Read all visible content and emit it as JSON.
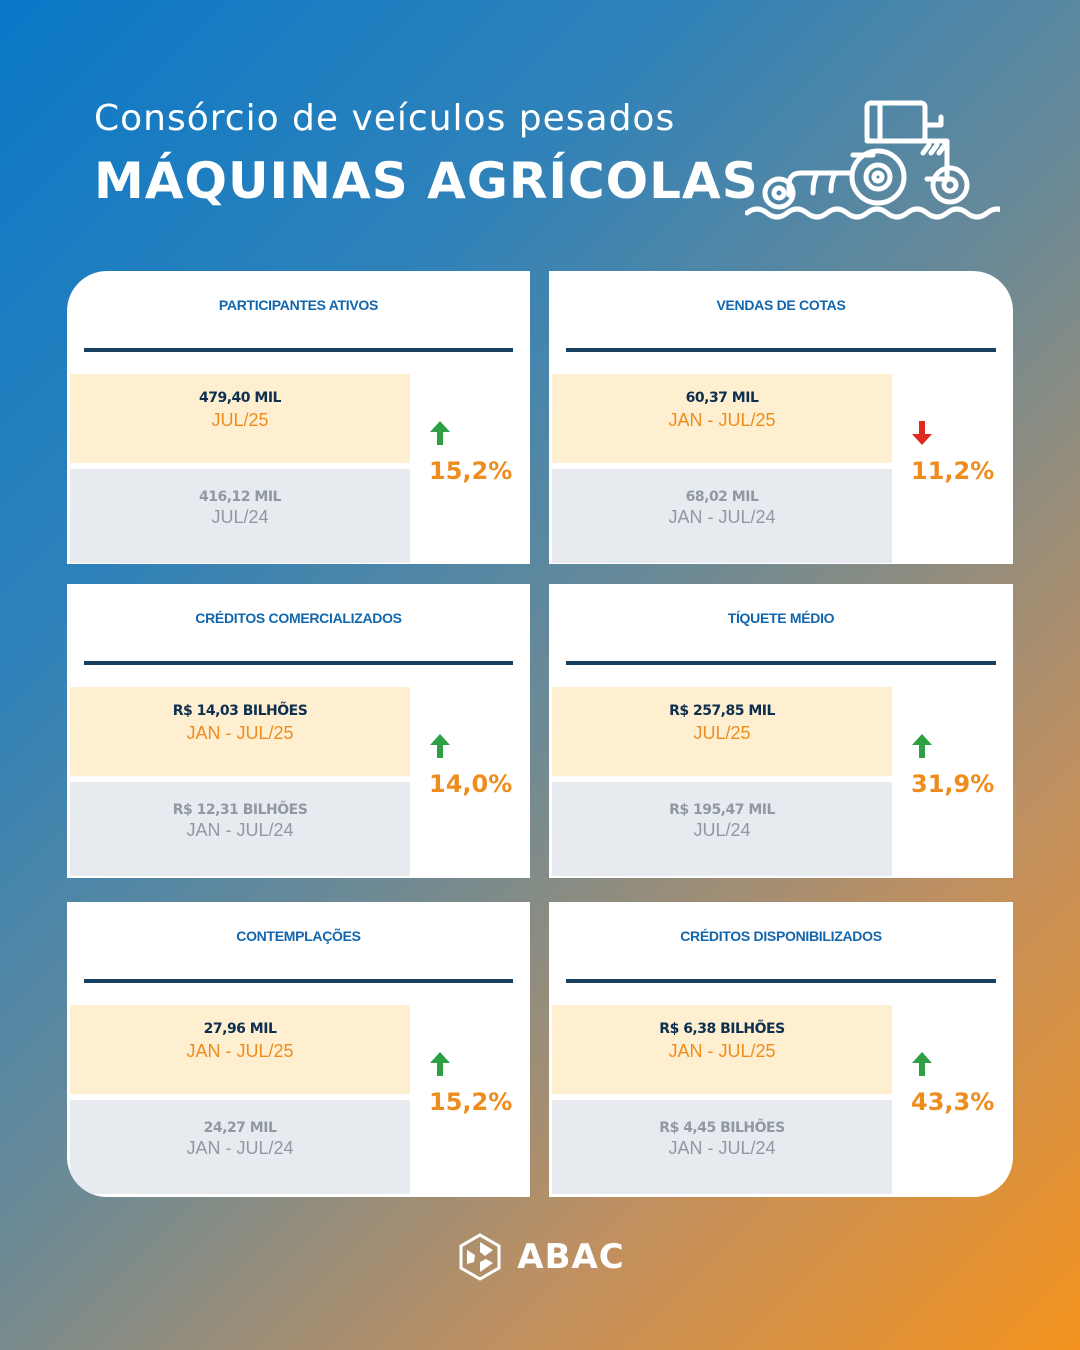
{
  "header": {
    "subtitle": "Consórcio de veículos pesados",
    "title": "MÁQUINAS AGRÍCOLAS",
    "icon": "tractor-icon"
  },
  "colors": {
    "title_blue": "#1266ad",
    "navy": "#0f2f4f",
    "orange": "#ef8c1e",
    "up_green": "#2ea043",
    "down_red": "#e02a1f",
    "current_bg": "#fdefd0",
    "previous_bg": "#e7ebef"
  },
  "cards": [
    {
      "title": "PARTICIPANTES ATIVOS",
      "current_value": "479,40 MIL",
      "current_period": "JUL/25",
      "previous_value": "416,12 MIL",
      "previous_period": "JUL/24",
      "change": "15,2%",
      "direction": "up"
    },
    {
      "title": "VENDAS DE COTAS",
      "current_value": "60,37 MIL",
      "current_period": "JAN - JUL/25",
      "previous_value": "68,02 MIL",
      "previous_period": "JAN - JUL/24",
      "change": "11,2%",
      "direction": "down"
    },
    {
      "title": "CRÉDITOS COMERCIALIZADOS",
      "current_value": "R$ 14,03 BILHÕES",
      "current_period": "JAN - JUL/25",
      "previous_value": "R$ 12,31 BILHÕES",
      "previous_period": "JAN - JUL/24",
      "change": "14,0%",
      "direction": "up"
    },
    {
      "title": "TÍQUETE MÉDIO",
      "current_value": "R$ 257,85 MIL",
      "current_period": "JUL/25",
      "previous_value": "R$ 195,47 MIL",
      "previous_period": "JUL/24",
      "change": "31,9%",
      "direction": "up"
    },
    {
      "title": "CONTEMPLAÇÕES",
      "current_value": "27,96 MIL",
      "current_period": "JAN - JUL/25",
      "previous_value": "24,27 MIL",
      "previous_period": "JAN - JUL/24",
      "change": "15,2%",
      "direction": "up"
    },
    {
      "title": "CRÉDITOS DISPONIBILIZADOS",
      "current_value": "R$ 6,38 BILHÕES",
      "current_period": "JAN - JUL/25",
      "previous_value": "R$ 4,45 BILHÕES",
      "previous_period": "JAN - JUL/24",
      "change": "43,3%",
      "direction": "up"
    }
  ],
  "footer": {
    "brand": "ABAC",
    "icon": "abac-logo-icon"
  }
}
